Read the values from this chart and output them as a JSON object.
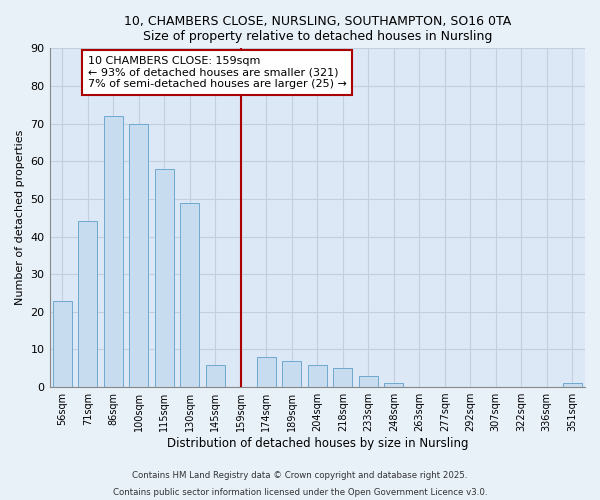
{
  "title1": "10, CHAMBERS CLOSE, NURSLING, SOUTHAMPTON, SO16 0TA",
  "title2": "Size of property relative to detached houses in Nursling",
  "xlabel": "Distribution of detached houses by size in Nursling",
  "ylabel": "Number of detached properties",
  "bar_labels": [
    "56sqm",
    "71sqm",
    "86sqm",
    "100sqm",
    "115sqm",
    "130sqm",
    "145sqm",
    "159sqm",
    "174sqm",
    "189sqm",
    "204sqm",
    "218sqm",
    "233sqm",
    "248sqm",
    "263sqm",
    "277sqm",
    "292sqm",
    "307sqm",
    "322sqm",
    "336sqm",
    "351sqm"
  ],
  "bar_values": [
    23,
    44,
    72,
    70,
    58,
    49,
    6,
    0,
    8,
    7,
    6,
    5,
    3,
    1,
    0,
    0,
    0,
    0,
    0,
    0,
    1
  ],
  "bar_color": "#c8dcf0",
  "bar_edge_color": "#6fa8d0",
  "vline_color": "#aa0000",
  "annotation_lines": [
    "10 CHAMBERS CLOSE: 159sqm",
    "← 93% of detached houses are smaller (321)",
    "7% of semi-detached houses are larger (25) →"
  ],
  "ylim": [
    0,
    90
  ],
  "yticks": [
    0,
    10,
    20,
    30,
    40,
    50,
    60,
    70,
    80,
    90
  ],
  "footnote1": "Contains HM Land Registry data © Crown copyright and database right 2025.",
  "footnote2": "Contains public sector information licensed under the Open Government Licence v3.0.",
  "bg_color": "#e8f0f8",
  "plot_bg_color": "#dce8f5",
  "grid_color": "#c0d0e0"
}
